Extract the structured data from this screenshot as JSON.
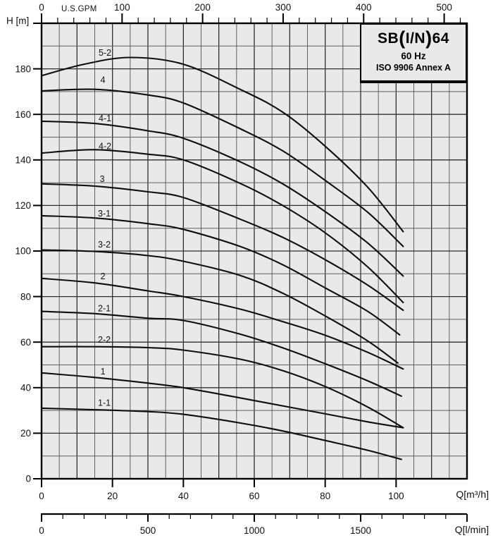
{
  "title_box": {
    "model": "SB(I/N)64",
    "frequency": "60 Hz",
    "standard": "ISO 9906 Annex A"
  },
  "colors": {
    "plot_bg": "#e9e9e9",
    "curve": "#0d0d0d",
    "grid_minor": "#606060",
    "grid_major": "#2e2e2e",
    "border": "#000000",
    "text": "#111111"
  },
  "chart_data": {
    "type": "line",
    "title": "SB(I/N)64",
    "subtitle": "60 Hz",
    "note": "ISO 9906 Annex A",
    "y_axis": {
      "label": "H [m]",
      "range": [
        0,
        200
      ],
      "labeled_ticks": [
        180,
        160,
        140,
        120,
        100,
        80,
        60,
        40,
        20,
        0
      ],
      "grid_minor_step": 10,
      "grid_major_step": 20
    },
    "x_axis_m3h": {
      "label": "Q[m³/h]",
      "range": [
        0,
        120
      ],
      "labeled_ticks": [
        0,
        20,
        40,
        60,
        80,
        100
      ],
      "grid_minor_step": 5,
      "grid_major_step": 10
    },
    "x_axis_gpm": {
      "label": "U.S.GPM",
      "labeled_ticks": [
        0,
        100,
        200,
        300,
        400,
        500
      ],
      "minor_step": 20,
      "minor_max": 520,
      "m3h_per_unit": 0.227125
    },
    "x_axis_lmin": {
      "label": "Q[l/min]",
      "labeled_ticks": [
        0,
        500,
        1000,
        1500
      ],
      "minor_step": 100,
      "axis_end": 2000,
      "m3h_per_unit": 0.06
    },
    "series": [
      {
        "name": "5-2",
        "label_pos": [
          17.9,
          187.0
        ],
        "points": [
          [
            0,
            177
          ],
          [
            12,
            182
          ],
          [
            25,
            185
          ],
          [
            40,
            182
          ],
          [
            56,
            171
          ],
          [
            68,
            161
          ],
          [
            80,
            146
          ],
          [
            92,
            128
          ],
          [
            102,
            108.5
          ]
        ]
      },
      {
        "name": "4",
        "label_pos": [
          17.3,
          175.2
        ],
        "points": [
          [
            0,
            170.3
          ],
          [
            15,
            171
          ],
          [
            30,
            168.5
          ],
          [
            40,
            165
          ],
          [
            56,
            153.7
          ],
          [
            68,
            144
          ],
          [
            80,
            131
          ],
          [
            92,
            117
          ],
          [
            102,
            102
          ]
        ]
      },
      {
        "name": "4-1",
        "label_pos": [
          17.9,
          158.2
        ],
        "points": [
          [
            0,
            157
          ],
          [
            15,
            156
          ],
          [
            30,
            152.8
          ],
          [
            40,
            149.5
          ],
          [
            56,
            139.2
          ],
          [
            68,
            129.5
          ],
          [
            80,
            117.3
          ],
          [
            92,
            103.5
          ],
          [
            102,
            89
          ]
        ]
      },
      {
        "name": "4-2",
        "label_pos": [
          17.9,
          146.0
        ],
        "points": [
          [
            0,
            143
          ],
          [
            15,
            144.5
          ],
          [
            30,
            142.5
          ],
          [
            40,
            140
          ],
          [
            56,
            129.7
          ],
          [
            68,
            120
          ],
          [
            80,
            108
          ],
          [
            92,
            93
          ],
          [
            102,
            77.4
          ]
        ]
      },
      {
        "name": "3",
        "label_pos": [
          17.1,
          131.6
        ],
        "points": [
          [
            0,
            129.5
          ],
          [
            15,
            128.5
          ],
          [
            30,
            126
          ],
          [
            40,
            123.5
          ],
          [
            56,
            114
          ],
          [
            68,
            106
          ],
          [
            80,
            96.2
          ],
          [
            92,
            85
          ],
          [
            102,
            74
          ]
        ]
      },
      {
        "name": "3-1",
        "label_pos": [
          17.7,
          116.4
        ],
        "points": [
          [
            0,
            115.5
          ],
          [
            15,
            114.5
          ],
          [
            30,
            112
          ],
          [
            40,
            109.5
          ],
          [
            56,
            102
          ],
          [
            68,
            94
          ],
          [
            80,
            83.8
          ],
          [
            92,
            73.5
          ],
          [
            101,
            63.2
          ]
        ]
      },
      {
        "name": "3-2",
        "label_pos": [
          17.7,
          102.8
        ],
        "points": [
          [
            0,
            100.5
          ],
          [
            15,
            99.8
          ],
          [
            30,
            98
          ],
          [
            40,
            95.5
          ],
          [
            56,
            89.3
          ],
          [
            68,
            81.5
          ],
          [
            80,
            71.5
          ],
          [
            92,
            60.5
          ],
          [
            100.5,
            50.8
          ]
        ]
      },
      {
        "name": "2",
        "label_pos": [
          17.3,
          88.9
        ],
        "points": [
          [
            0,
            88
          ],
          [
            15,
            86
          ],
          [
            30,
            82.5
          ],
          [
            40,
            80
          ],
          [
            56,
            74.5
          ],
          [
            68,
            69
          ],
          [
            80,
            63
          ],
          [
            92,
            55.5
          ],
          [
            102,
            48.2
          ]
        ]
      },
      {
        "name": "2-1",
        "label_pos": [
          17.7,
          74.9
        ],
        "points": [
          [
            0,
            73.5
          ],
          [
            15,
            72.5
          ],
          [
            30,
            70.5
          ],
          [
            40,
            69.5
          ],
          [
            56,
            63.5
          ],
          [
            68,
            57.5
          ],
          [
            80,
            50.5
          ],
          [
            92,
            43
          ],
          [
            101.5,
            36.3
          ]
        ]
      },
      {
        "name": "2-2",
        "label_pos": [
          17.7,
          61.0
        ],
        "points": [
          [
            0,
            58
          ],
          [
            15,
            58
          ],
          [
            30,
            57.6
          ],
          [
            40,
            56.5
          ],
          [
            56,
            52.5
          ],
          [
            68,
            47.5
          ],
          [
            80,
            40.5
          ],
          [
            92,
            31.5
          ],
          [
            102,
            22.4
          ]
        ]
      },
      {
        "name": "1",
        "label_pos": [
          17.3,
          47.1
        ],
        "points": [
          [
            0,
            46.5
          ],
          [
            15,
            44.5
          ],
          [
            30,
            42
          ],
          [
            40,
            40
          ],
          [
            56,
            35.5
          ],
          [
            68,
            32
          ],
          [
            80,
            28.5
          ],
          [
            92,
            25
          ],
          [
            102,
            22.4
          ]
        ]
      },
      {
        "name": "1-1",
        "label_pos": [
          17.7,
          33.4
        ],
        "points": [
          [
            0,
            31
          ],
          [
            15,
            30.3
          ],
          [
            30,
            29.5
          ],
          [
            40,
            28.3
          ],
          [
            56,
            24.5
          ],
          [
            68,
            21
          ],
          [
            80,
            16.8
          ],
          [
            92,
            12.5
          ],
          [
            101.5,
            8.5
          ]
        ]
      }
    ],
    "grid": true,
    "legend_position": "curve-labels-inline"
  }
}
